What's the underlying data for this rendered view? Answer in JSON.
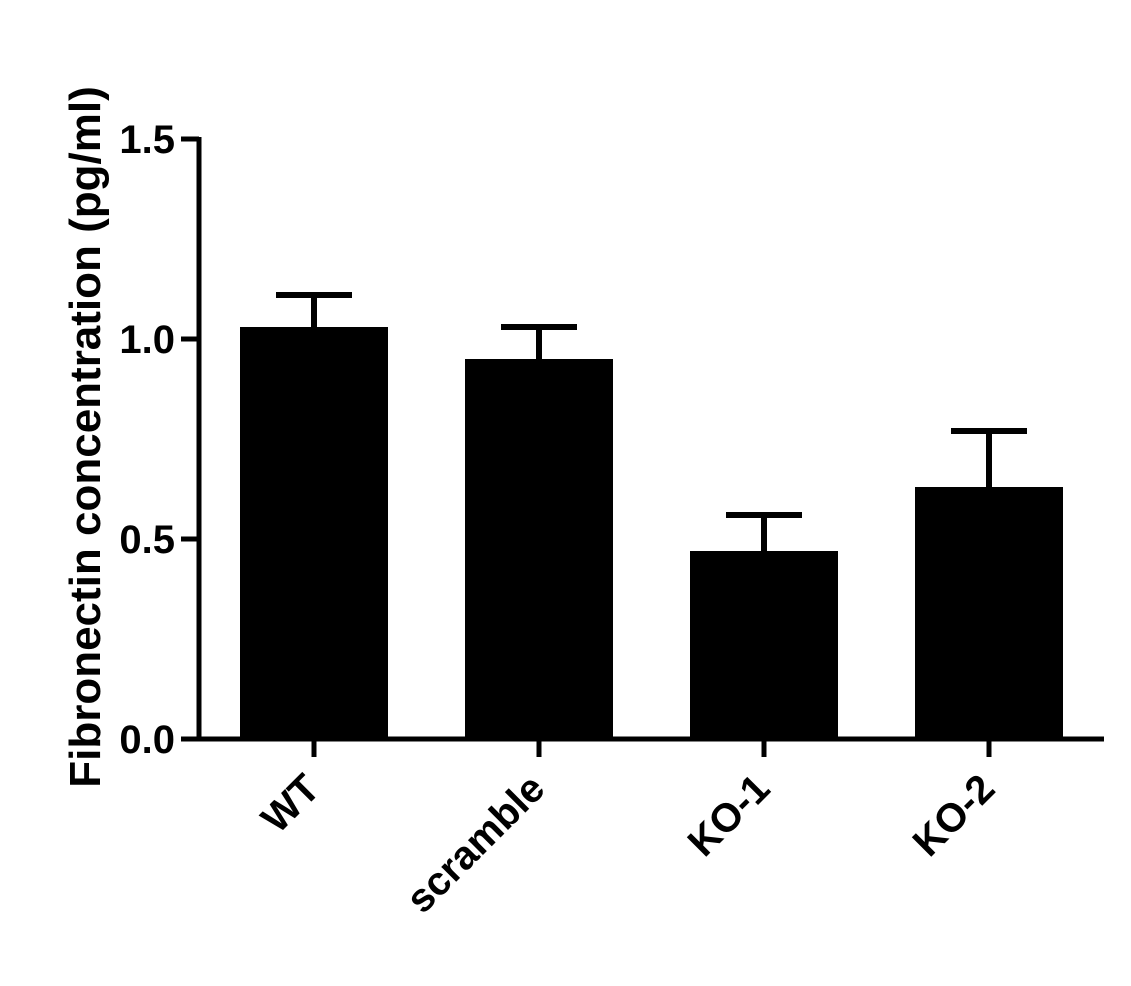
{
  "chart_data": {
    "type": "bar",
    "title": "",
    "xlabel": "",
    "ylabel": "Fibronectin concentration (pg/ml)",
    "categories": [
      "WT",
      "scramble",
      "KO-1",
      "KO-2"
    ],
    "values": [
      1.03,
      0.95,
      0.47,
      0.63
    ],
    "error_upper": [
      1.11,
      1.03,
      0.56,
      0.77
    ],
    "ylim": [
      0,
      1.5
    ],
    "yticks": [
      0.0,
      0.5,
      1.0,
      1.5
    ],
    "ytick_labels": [
      "0.0",
      "0.5",
      "1.0",
      "1.5"
    ],
    "grid": false,
    "legend": "none",
    "bar_color": "#000000"
  }
}
